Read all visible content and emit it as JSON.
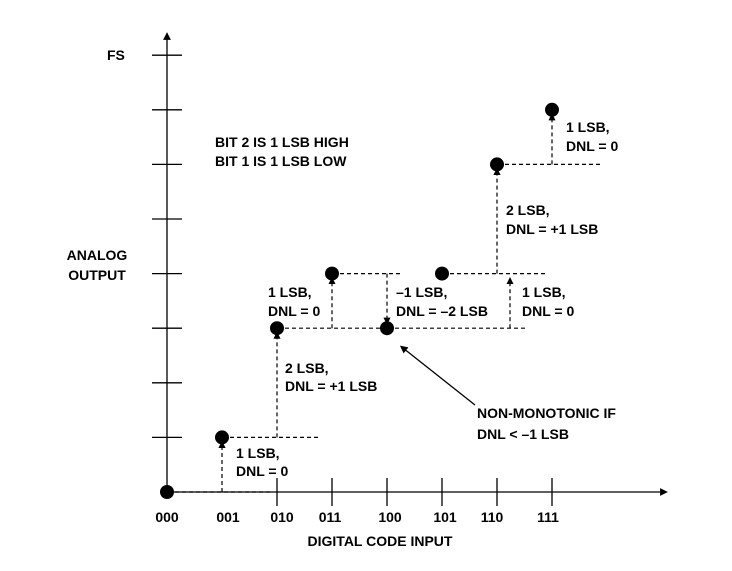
{
  "y_axis": {
    "label_line1": "ANALOG",
    "label_line2": "OUTPUT",
    "top_label": "FS"
  },
  "x_axis": {
    "label": "DIGITAL CODE INPUT",
    "codes": [
      "000",
      "001",
      "010",
      "011",
      "100",
      "101",
      "110",
      "111"
    ]
  },
  "levels_lsb": [
    0,
    1,
    3,
    4,
    3,
    4,
    6,
    7
  ],
  "note": {
    "line1": "BIT 2 IS 1 LSB HIGH",
    "line2": "BIT 1 IS 1 LSB LOW"
  },
  "steps": [
    {
      "l1": "1 LSB,",
      "l2": "DNL = 0"
    },
    {
      "l1": "2 LSB,",
      "l2": "DNL = +1 LSB"
    },
    {
      "l1": "1 LSB,",
      "l2": "DNL = 0"
    },
    {
      "l1": "–1 LSB,",
      "l2": "DNL = –2 LSB"
    },
    {
      "l1": "1 LSB,",
      "l2": "DNL = 0"
    },
    {
      "l1": "2 LSB,",
      "l2": "DNL = +1 LSB"
    },
    {
      "l1": "1 LSB,",
      "l2": "DNL = 0"
    }
  ],
  "callout": {
    "line1": "NON-MONOTONIC IF",
    "line2": "DNL < –1 LSB"
  }
}
